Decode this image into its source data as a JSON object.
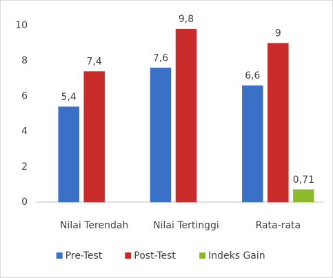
{
  "chart_data": {
    "type": "bar",
    "categories": [
      "Nilai Terendah",
      "Nilai Tertinggi",
      "Rata-rata"
    ],
    "series": [
      {
        "name": "Pre-Test",
        "color": "#3a70c6",
        "values": [
          5.4,
          7.6,
          6.6
        ],
        "value_labels": [
          "5,4",
          "7,6",
          "6,6"
        ]
      },
      {
        "name": "Post-Test",
        "color": "#c92b2b",
        "values": [
          7.4,
          9.8,
          9
        ],
        "value_labels": [
          "7,4",
          "9,8",
          "9"
        ]
      },
      {
        "name": "Indeks Gain",
        "color": "#8dba2c",
        "values": [
          null,
          null,
          0.71
        ],
        "value_labels": [
          null,
          null,
          "0,71"
        ]
      }
    ],
    "ylim": [
      0,
      10
    ],
    "yticks": [
      0,
      2,
      4,
      6,
      8,
      10
    ],
    "grid": false,
    "legend": "bottom"
  }
}
